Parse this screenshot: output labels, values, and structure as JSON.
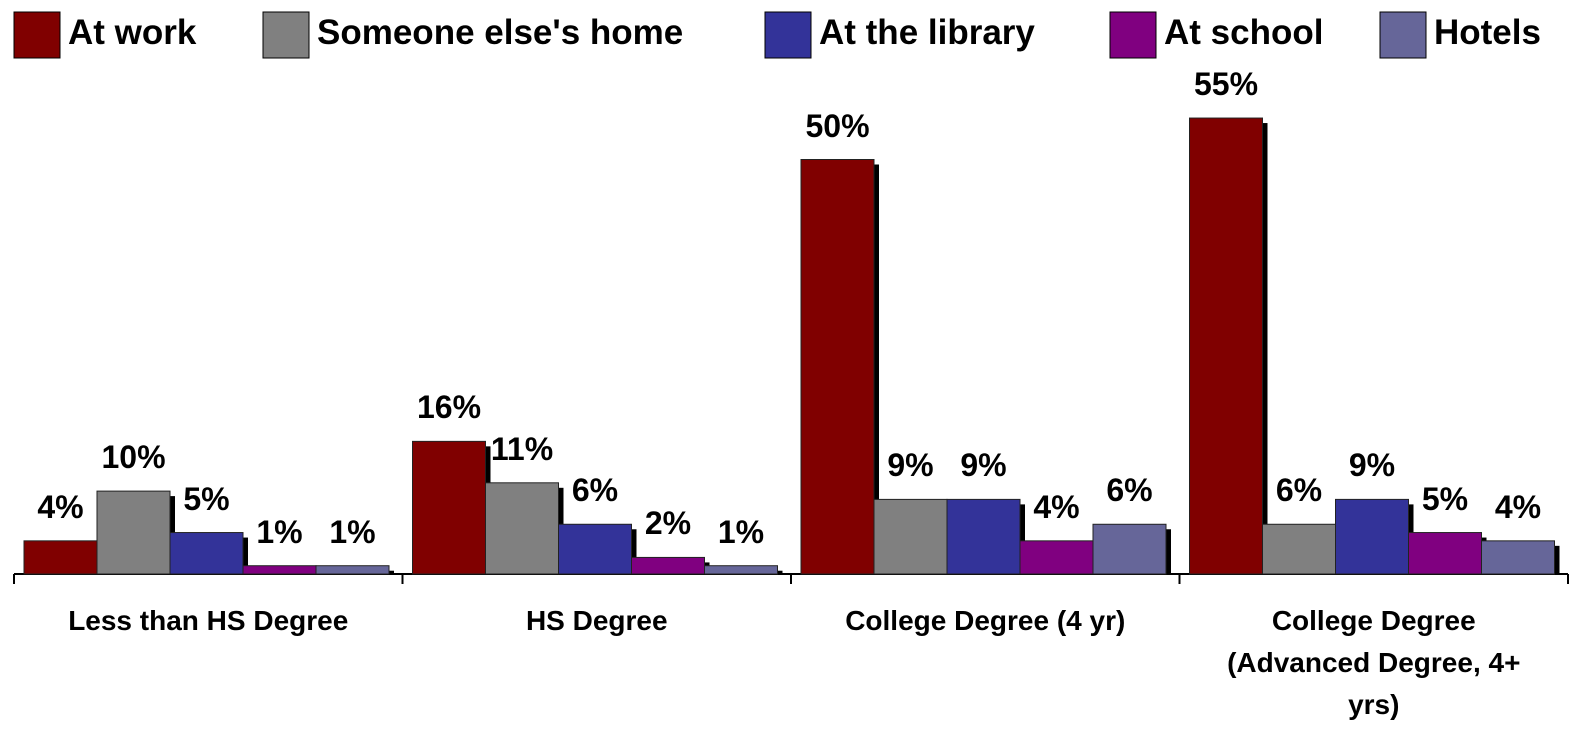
{
  "chart_data": {
    "type": "bar",
    "categories": [
      "Less than HS Degree",
      "HS Degree",
      "College Degree (4 yr)",
      "College Degree (Advanced Degree, 4+ yrs)"
    ],
    "series": [
      {
        "name": "At work",
        "color": "#800000",
        "values": [
          4,
          16,
          50,
          55
        ],
        "value_labels": [
          "4%",
          "16%",
          "50%",
          "55%"
        ]
      },
      {
        "name": "Someone else's home",
        "color": "#808080",
        "values": [
          10,
          11,
          9,
          6
        ],
        "value_labels": [
          "10%",
          "11%",
          "9%",
          "6%"
        ]
      },
      {
        "name": "At the library",
        "color": "#333399",
        "values": [
          5,
          6,
          9,
          9
        ],
        "value_labels": [
          "5%",
          "6%",
          "9%",
          "9%"
        ]
      },
      {
        "name": "At school",
        "color": "#800080",
        "values": [
          1,
          2,
          4,
          5
        ],
        "value_labels": [
          "1%",
          "2%",
          "4%",
          "5%"
        ]
      },
      {
        "name": "Hotels",
        "color": "#666699",
        "values": [
          1,
          1,
          6,
          4
        ],
        "value_labels": [
          "1%",
          "1%",
          "6%",
          "4%"
        ]
      }
    ],
    "legend": "top"
  }
}
